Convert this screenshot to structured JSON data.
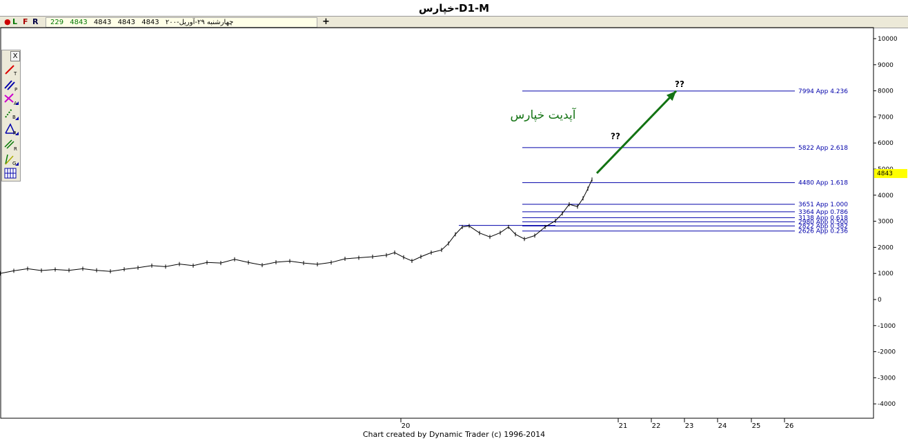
{
  "header": {
    "title": "خپارس-D1-M"
  },
  "toolbar": {
    "buttons": [
      "L",
      "F",
      "R"
    ],
    "info_date": "چهارشنبه ۲۹-آوریل-۲۰۰",
    "info_values": [
      "4843",
      "4843",
      "4843",
      "4843",
      "229"
    ],
    "plus_label": "+"
  },
  "tools": {
    "close_label": "X",
    "items": [
      "trendline-tool",
      "parallel-tool",
      "andrews-tool",
      "b-tool",
      "retracement-tool",
      "r-lines-tool",
      "gann-tool",
      "pt-tool"
    ]
  },
  "footer": {
    "credit": "Chart created by Dynamic Trader  (c) 1996-2014"
  },
  "colors": {
    "level_line": "#0000aa",
    "arrow": "#137313",
    "annotation_text": "#137313",
    "price_tag": "#ffff00"
  },
  "chart_data": {
    "type": "line",
    "ylim": [
      -4500,
      10400
    ],
    "y_ticks": [
      10000,
      9000,
      8000,
      7000,
      6000,
      5000,
      4000,
      3000,
      2000,
      1000,
      0,
      -1000,
      -2000,
      -3000,
      -4000
    ],
    "x_labels": [
      "20",
      "21",
      "22",
      "23",
      "24",
      "25",
      "26"
    ],
    "last_price": "4843",
    "annotation": "آپدیت خپارس",
    "question_marks": [
      "??",
      "??"
    ],
    "levels": [
      {
        "value": 7994,
        "label": "7994 App 4.236"
      },
      {
        "value": 5822,
        "label": "5822 App 2.618"
      },
      {
        "value": 4480,
        "label": "4480 App 1.618"
      },
      {
        "value": 3651,
        "label": "3651 App 1.000"
      },
      {
        "value": 3364,
        "label": "3364 App 0.786"
      },
      {
        "value": 3138,
        "label": "3138 App 0.618"
      },
      {
        "value": 2980,
        "label": "2980 App 0.500"
      },
      {
        "value": 2822,
        "label": "2822 App 0.382"
      },
      {
        "value": 2626,
        "label": "2626 App 0.236"
      }
    ],
    "price_path": [
      [
        0,
        1000
      ],
      [
        20,
        1100
      ],
      [
        40,
        1180
      ],
      [
        60,
        1110
      ],
      [
        80,
        1150
      ],
      [
        100,
        1120
      ],
      [
        120,
        1180
      ],
      [
        140,
        1120
      ],
      [
        160,
        1080
      ],
      [
        180,
        1160
      ],
      [
        200,
        1220
      ],
      [
        220,
        1300
      ],
      [
        240,
        1260
      ],
      [
        260,
        1360
      ],
      [
        280,
        1300
      ],
      [
        300,
        1420
      ],
      [
        320,
        1400
      ],
      [
        340,
        1540
      ],
      [
        360,
        1420
      ],
      [
        380,
        1320
      ],
      [
        400,
        1430
      ],
      [
        420,
        1470
      ],
      [
        440,
        1400
      ],
      [
        460,
        1350
      ],
      [
        480,
        1420
      ],
      [
        500,
        1560
      ],
      [
        520,
        1600
      ],
      [
        540,
        1640
      ],
      [
        560,
        1700
      ],
      [
        572,
        1800
      ],
      [
        585,
        1620
      ],
      [
        597,
        1480
      ],
      [
        610,
        1640
      ],
      [
        625,
        1800
      ],
      [
        640,
        1900
      ],
      [
        650,
        2150
      ],
      [
        660,
        2500
      ],
      [
        670,
        2780
      ],
      [
        680,
        2820
      ],
      [
        695,
        2550
      ],
      [
        710,
        2400
      ],
      [
        725,
        2560
      ],
      [
        737,
        2780
      ],
      [
        747,
        2500
      ],
      [
        760,
        2320
      ],
      [
        775,
        2450
      ],
      [
        790,
        2780
      ],
      [
        805,
        3020
      ],
      [
        815,
        3300
      ],
      [
        825,
        3650
      ],
      [
        837,
        3560
      ],
      [
        845,
        3880
      ],
      [
        852,
        4250
      ],
      [
        858,
        4600
      ]
    ],
    "arrow": {
      "from": [
        865,
        4843
      ],
      "to": [
        980,
        7994
      ]
    },
    "question_mark_positions": [
      [
        892,
        6150
      ],
      [
        985,
        8150
      ]
    ]
  }
}
